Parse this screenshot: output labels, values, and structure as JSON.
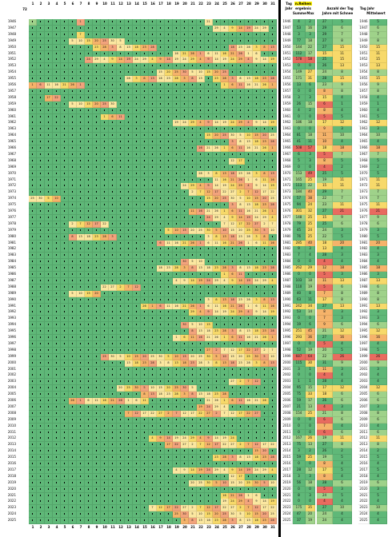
{
  "colors": {
    "green": "#5fb878",
    "light_green": "#9fd28a",
    "yellow": "#f7d96a",
    "light_yellow": "#fbe7a0",
    "orange": "#f5b36a",
    "salmon": "#f2a37c",
    "red": "#e86b5f",
    "header_bg": "#ffffff",
    "highlight": "#fff200"
  },
  "grid": {
    "corner_label": "72",
    "day_headers": [
      "1",
      "2",
      "3",
      "4",
      "5",
      "6",
      "7",
      "8",
      "9",
      "10",
      "11",
      "12",
      "13",
      "14",
      "15",
      "16",
      "17",
      "18",
      "19",
      "20",
      "21",
      "22",
      "23",
      "24",
      "25",
      "26",
      "27",
      "28",
      "29",
      "30",
      "31"
    ],
    "years": [
      "1946",
      "1947",
      "1948",
      "1949",
      "1950",
      "1951",
      "1952",
      "1953",
      "1954",
      "1955",
      "1956",
      "1957",
      "1958",
      "1959",
      "1960",
      "1961",
      "1962",
      "1963",
      "1964",
      "1965",
      "1966",
      "1967",
      "1968",
      "1969",
      "1970",
      "1971",
      "1972",
      "1973",
      "1974",
      "1975",
      "1976",
      "1977",
      "1978",
      "1979",
      "1980",
      "1981",
      "1982",
      "1983",
      "1984",
      "1985",
      "1986",
      "1987",
      "1988",
      "1989",
      "1990",
      "1991",
      "1992",
      "1993",
      "1994",
      "1995",
      "1996",
      "1997",
      "1998",
      "1999",
      "2000",
      "2001",
      "2002",
      "2003",
      "2004",
      "2005",
      "2006",
      "2007",
      "2008",
      "2009",
      "2010",
      "2011",
      "2012",
      "2013",
      "2014",
      "2015",
      "2016",
      "2017",
      "2018",
      "2019",
      "2020",
      "2021",
      "2022",
      "2023",
      "2024",
      "2025"
    ]
  },
  "right_panel": {
    "header_left_top": "Tag",
    "header_left_bottom": "Jahr",
    "header_highlight_top": "n.Reihen",
    "header_highlight_bottom": "ergebnis",
    "header_sum": "Summe",
    "header_max": "Max",
    "header_count_top": "Anzahl der Tag",
    "header_count_bottom": "Jahre mit Schnee",
    "header_tag_jahr": "Tag Jahr",
    "header_mittel": "Mittelwert",
    "rows": [
      {
        "year": "1946",
        "sum": "4",
        "max": "2",
        "cnt": "27",
        "day": "5",
        "yr2": "1946"
      },
      {
        "year": "1947",
        "sum": "53",
        "max": "16",
        "cnt": "29",
        "day": "6",
        "yr2": "1947"
      },
      {
        "year": "1948",
        "sum": "3",
        "max": "3",
        "cnt": "29",
        "day": "7",
        "yr2": "1948"
      },
      {
        "year": "1949",
        "sum": "77",
        "max": "18",
        "cnt": "27",
        "day": "8",
        "yr2": "1949"
      },
      {
        "year": "1950",
        "sum": "144",
        "max": "22",
        "cnt": "27",
        "day": "15",
        "yr2": "1950"
      },
      {
        "year": "1951",
        "sum": "112",
        "max": "17",
        "cnt": "15",
        "day": "11",
        "yr2": "1951"
      },
      {
        "year": "1952",
        "sum": "578",
        "max": "58",
        "cnt": "25",
        "day": "15",
        "yr2": "1952"
      },
      {
        "year": "1953",
        "sum": "0",
        "max": "0",
        "cnt": "26",
        "day": "13",
        "yr2": "1953"
      },
      {
        "year": "1954",
        "sum": "149",
        "max": "27",
        "cnt": "24",
        "day": "8",
        "yr2": "1954"
      },
      {
        "year": "1955",
        "sum": "171",
        "max": "31",
        "cnt": "28",
        "day": "15",
        "yr2": "1955"
      },
      {
        "year": "1956",
        "sum": "13",
        "max": "6",
        "cnt": "23",
        "day": "9",
        "yr2": "1956"
      },
      {
        "year": "1957",
        "sum": "0",
        "max": "0",
        "cnt": "8",
        "day": "8",
        "yr2": "1957"
      },
      {
        "year": "1958",
        "sum": "3",
        "max": "3",
        "cnt": "15",
        "day": "4",
        "yr2": "1958"
      },
      {
        "year": "1959",
        "sum": "26",
        "max": "15",
        "cnt": "6",
        "day": "1",
        "yr2": "1959"
      },
      {
        "year": "1960",
        "sum": "4",
        "max": "2",
        "cnt": "8",
        "day": "4",
        "yr2": "1960"
      },
      {
        "year": "1961",
        "sum": "0",
        "max": "0",
        "cnt": "5",
        "day": "5",
        "yr2": "1961"
      },
      {
        "year": "1962",
        "sum": "186",
        "max": "18",
        "cnt": "17",
        "day": "12",
        "yr2": "1962"
      },
      {
        "year": "1963",
        "sum": "0",
        "max": "0",
        "cnt": "9",
        "day": "3",
        "yr2": "1963"
      },
      {
        "year": "1964",
        "sum": "81",
        "max": "18",
        "cnt": "11",
        "day": "10",
        "yr2": "1964"
      },
      {
        "year": "1965",
        "sum": "41",
        "max": "11",
        "cnt": "10",
        "day": "4",
        "yr2": "1965"
      },
      {
        "year": "1966",
        "sum": "508",
        "max": "57",
        "cnt": "18",
        "day": "18",
        "yr2": "1966"
      },
      {
        "year": "1967",
        "sum": "6",
        "max": "3",
        "cnt": "5",
        "day": "7",
        "yr2": "1967"
      },
      {
        "year": "1968",
        "sum": "5",
        "max": "3",
        "cnt": "8",
        "day": "5",
        "yr2": "1968"
      },
      {
        "year": "1969",
        "sum": "0",
        "max": "0",
        "cnt": "4",
        "day": "2",
        "yr2": "1969"
      },
      {
        "year": "1970",
        "sum": "153",
        "max": "49",
        "cnt": "25",
        "day": "5",
        "yr2": "1970"
      },
      {
        "year": "1971",
        "sum": "165",
        "max": "25",
        "cnt": "19",
        "day": "11",
        "yr2": "1971"
      },
      {
        "year": "1972",
        "sum": "113",
        "max": "22",
        "cnt": "15",
        "day": "11",
        "yr2": "1972"
      },
      {
        "year": "1973",
        "sum": "184",
        "max": "40",
        "cnt": "29",
        "day": "7",
        "yr2": "1973"
      },
      {
        "year": "1974",
        "sum": "57",
        "max": "38",
        "cnt": "22",
        "day": "7",
        "yr2": "1974"
      },
      {
        "year": "1975",
        "sum": "94",
        "max": "24",
        "cnt": "23",
        "day": "11",
        "yr2": "1975"
      },
      {
        "year": "1976",
        "sum": "301",
        "max": "32",
        "cnt": "27",
        "day": "21",
        "yr2": "1976"
      },
      {
        "year": "1977",
        "sum": "148",
        "max": "25",
        "cnt": "15",
        "day": "9",
        "yr2": "1977"
      },
      {
        "year": "1978",
        "sum": "79",
        "max": "25",
        "cnt": "25",
        "day": "6",
        "yr2": "1978"
      },
      {
        "year": "1979",
        "sum": "45",
        "max": "24",
        "cnt": "24",
        "day": "3",
        "yr2": "1979"
      },
      {
        "year": "1980",
        "sum": "76",
        "max": "25",
        "cnt": "22",
        "day": "5",
        "yr2": "1980"
      },
      {
        "year": "1981",
        "sum": "285",
        "max": "40",
        "cnt": "18",
        "day": "20",
        "yr2": "1981"
      },
      {
        "year": "1982",
        "sum": "9",
        "max": "3",
        "cnt": "13",
        "day": "4",
        "yr2": "1982"
      },
      {
        "year": "1983",
        "sum": "7",
        "max": "4",
        "cnt": "28",
        "day": "3",
        "yr2": "1983"
      },
      {
        "year": "1984",
        "sum": "0",
        "max": "0",
        "cnt": "4",
        "day": "4",
        "yr2": "1984"
      },
      {
        "year": "1985",
        "sum": "262",
        "max": "29",
        "cnt": "12",
        "day": "18",
        "yr2": "1985"
      },
      {
        "year": "1986",
        "sum": "0",
        "max": "0",
        "cnt": "5",
        "day": "3",
        "yr2": "1986"
      },
      {
        "year": "1987",
        "sum": "103",
        "max": "18",
        "cnt": "11",
        "day": "13",
        "yr2": "1987"
      },
      {
        "year": "1988",
        "sum": "110",
        "max": "19",
        "cnt": "5",
        "day": "6",
        "yr2": "1988"
      },
      {
        "year": "1989",
        "sum": "40",
        "max": "8",
        "cnt": "7",
        "day": "8",
        "yr2": "1989"
      },
      {
        "year": "1990",
        "sum": "63",
        "max": "11",
        "cnt": "17",
        "day": "8",
        "yr2": "1990"
      },
      {
        "year": "1991",
        "sum": "242",
        "max": "34",
        "cnt": "27",
        "day": "13",
        "yr2": "1991"
      },
      {
        "year": "1992",
        "sum": "53",
        "max": "14",
        "cnt": "8",
        "day": "3",
        "yr2": "1992"
      },
      {
        "year": "1993",
        "sum": "0",
        "max": "0",
        "cnt": "7",
        "day": "3",
        "yr2": "1993"
      },
      {
        "year": "1994",
        "sum": "19",
        "max": "6",
        "cnt": "9",
        "day": "6",
        "yr2": "1994"
      },
      {
        "year": "1995",
        "sum": "251",
        "max": "45",
        "cnt": "21",
        "day": "12",
        "yr2": "1995"
      },
      {
        "year": "1996",
        "sum": "293",
        "max": "36",
        "cnt": "27",
        "day": "16",
        "yr2": "1996"
      },
      {
        "year": "1997",
        "sum": "0",
        "max": "0",
        "cnt": "5",
        "day": "4",
        "yr2": "1997"
      },
      {
        "year": "1998",
        "sum": "52",
        "max": "19",
        "cnt": "20",
        "day": "5",
        "yr2": "1998"
      },
      {
        "year": "1999",
        "sum": "687",
        "max": "64",
        "cnt": "22",
        "day": "26",
        "yr2": "1999"
      },
      {
        "year": "2000",
        "sum": "115",
        "max": "30",
        "cnt": "31",
        "day": "9",
        "yr2": "2000"
      },
      {
        "year": "2001",
        "sum": "3",
        "max": "1",
        "cnt": "11",
        "day": "3",
        "yr2": "2001"
      },
      {
        "year": "2002",
        "sum": "0",
        "max": "0",
        "cnt": "4",
        "day": "4",
        "yr2": "2002"
      },
      {
        "year": "2003",
        "sum": "1",
        "max": "1",
        "cnt": "28",
        "day": "4",
        "yr2": "2003"
      },
      {
        "year": "2004",
        "sum": "95",
        "max": "15",
        "cnt": "17",
        "day": "12",
        "yr2": "2004"
      },
      {
        "year": "2005",
        "sum": "75",
        "max": "33",
        "cnt": "18",
        "day": "6",
        "yr2": "2005"
      },
      {
        "year": "2006",
        "sum": "59",
        "max": "17",
        "cnt": "26",
        "day": "6",
        "yr2": "2006"
      },
      {
        "year": "2007",
        "sum": "21",
        "max": "13",
        "cnt": "4",
        "day": "3",
        "yr2": "2007"
      },
      {
        "year": "2008",
        "sum": "154",
        "max": "25",
        "cnt": "21",
        "day": "8",
        "yr2": "2008"
      },
      {
        "year": "2009",
        "sum": "0",
        "max": "0",
        "cnt": "6",
        "day": "6",
        "yr2": "2009"
      },
      {
        "year": "2010",
        "sum": "0",
        "max": "0",
        "cnt": "7",
        "day": "4",
        "yr2": "2010"
      },
      {
        "year": "2011",
        "sum": "0",
        "max": "0",
        "cnt": "6",
        "day": "6",
        "yr2": "2011"
      },
      {
        "year": "2012",
        "sum": "167",
        "max": "26",
        "cnt": "19",
        "day": "11",
        "yr2": "2012"
      },
      {
        "year": "2013",
        "sum": "75",
        "max": "13",
        "cnt": "27",
        "day": "8",
        "yr2": "2013"
      },
      {
        "year": "2014",
        "sum": "3",
        "max": "2",
        "cnt": "26",
        "day": "2",
        "yr2": "2014"
      },
      {
        "year": "2015",
        "sum": "59",
        "max": "25",
        "cnt": "19",
        "day": "5",
        "yr2": "2015"
      },
      {
        "year": "2016",
        "sum": "0",
        "max": "0",
        "cnt": "8",
        "day": "4",
        "yr2": "2016"
      },
      {
        "year": "2017",
        "sum": "28",
        "max": "12",
        "cnt": "17",
        "day": "5",
        "yr2": "2017"
      },
      {
        "year": "2018",
        "sum": "3",
        "max": "3",
        "cnt": "8",
        "day": "4",
        "yr2": "2018"
      },
      {
        "year": "2019",
        "sum": "56",
        "max": "18",
        "cnt": "28",
        "day": "6",
        "yr2": "2019"
      },
      {
        "year": "2020",
        "sum": "0",
        "max": "0",
        "cnt": "5",
        "day": "3",
        "yr2": "2020"
      },
      {
        "year": "2021",
        "sum": "8",
        "max": "3",
        "cnt": "24",
        "day": "5",
        "yr2": "2021"
      },
      {
        "year": "2022",
        "sum": "0",
        "max": "0",
        "cnt": "4",
        "day": "4",
        "yr2": "2022"
      },
      {
        "year": "2023",
        "sum": "175",
        "max": "35",
        "cnt": "27",
        "day": "10",
        "yr2": "2023"
      },
      {
        "year": "2024",
        "sum": "47",
        "max": "20",
        "cnt": "24",
        "day": "4",
        "yr2": "2024"
      },
      {
        "year": "2025",
        "sum": "37",
        "max": "19",
        "cnt": "24",
        "day": "4",
        "yr2": "2025"
      }
    ]
  },
  "footer_day_headers": [
    "1",
    "2",
    "3",
    "4",
    "5",
    "6",
    "7",
    "8",
    "9",
    "10",
    "11",
    "12",
    "13",
    "14",
    "15",
    "16",
    "17",
    "18",
    "19",
    "20",
    "21",
    "22",
    "23",
    "24",
    "25",
    "26",
    "27",
    "28",
    "29",
    "30",
    "31"
  ],
  "snow_spans": [
    [
      0,
      [
        [
          6,
          6
        ],
        [
          22,
          22
        ]
      ]
    ],
    [
      1,
      [
        [
          23,
          29
        ]
      ]
    ],
    [
      2,
      [
        [
          6,
          6
        ]
      ]
    ],
    [
      3,
      [
        [
          5,
          11
        ]
      ]
    ],
    [
      4,
      [
        [
          8,
          15
        ],
        [
          25,
          30
        ]
      ]
    ],
    [
      5,
      [
        [
          18,
          28
        ]
      ]
    ],
    [
      6,
      [
        [
          7,
          30
        ]
      ]
    ],
    [
      8,
      [
        [
          16,
          24
        ]
      ]
    ],
    [
      9,
      [
        [
          12,
          21
        ],
        [
          23,
          30
        ]
      ]
    ],
    [
      10,
      [
        [
          0,
          6
        ],
        [
          24,
          30
        ]
      ]
    ],
    [
      12,
      [
        [
          2,
          3
        ]
      ]
    ],
    [
      13,
      [
        [
          5,
          10
        ]
      ]
    ],
    [
      15,
      [
        [
          9,
          11
        ]
      ]
    ],
    [
      16,
      [
        [
          18,
          30
        ]
      ]
    ],
    [
      18,
      [
        [
          22,
          30
        ]
      ]
    ],
    [
      19,
      [
        [
          25,
          30
        ]
      ]
    ],
    [
      20,
      [
        [
          21,
          30
        ]
      ]
    ],
    [
      22,
      [
        [
          25,
          26
        ]
      ]
    ],
    [
      24,
      [
        [
          21,
          30
        ]
      ]
    ],
    [
      25,
      [
        [
          23,
          30
        ]
      ]
    ],
    [
      26,
      [
        [
          19,
          30
        ]
      ]
    ],
    [
      27,
      [
        [
          20,
          30
        ]
      ]
    ],
    [
      28,
      [
        [
          0,
          3
        ],
        [
          22,
          30
        ]
      ]
    ],
    [
      29,
      [
        [
          25,
          30
        ]
      ]
    ],
    [
      30,
      [
        [
          20,
          30
        ]
      ]
    ],
    [
      31,
      [
        [
          22,
          30
        ]
      ]
    ],
    [
      32,
      [
        [
          5,
          9
        ],
        [
          24,
          30
        ]
      ]
    ],
    [
      33,
      [
        [
          17,
          30
        ]
      ]
    ],
    [
      34,
      [
        [
          5,
          10
        ],
        [
          22,
          29
        ]
      ]
    ],
    [
      35,
      [
        [
          16,
          30
        ]
      ]
    ],
    [
      38,
      [
        [
          19,
          21
        ]
      ]
    ],
    [
      39,
      [
        [
          16,
          30
        ]
      ]
    ],
    [
      40,
      [
        [
          24,
          26
        ]
      ]
    ],
    [
      41,
      [
        [
          18,
          30
        ]
      ]
    ],
    [
      42,
      [
        [
          9,
          13
        ]
      ]
    ],
    [
      43,
      [
        [
          5,
          8
        ]
      ]
    ],
    [
      44,
      [
        [
          22,
          30
        ]
      ]
    ],
    [
      45,
      [
        [
          14,
          30
        ]
      ]
    ],
    [
      46,
      [
        [
          20,
          30
        ]
      ]
    ],
    [
      48,
      [
        [
          19,
          22
        ]
      ]
    ],
    [
      49,
      [
        [
          20,
          30
        ]
      ]
    ],
    [
      50,
      [
        [
          18,
          30
        ]
      ]
    ],
    [
      52,
      [
        [
          22,
          30
        ]
      ]
    ],
    [
      53,
      [
        [
          9,
          30
        ]
      ]
    ],
    [
      54,
      [
        [
          12,
          30
        ]
      ]
    ],
    [
      57,
      [
        [
          25,
          28
        ]
      ]
    ],
    [
      58,
      [
        [
          11,
          20
        ]
      ]
    ],
    [
      59,
      [
        [
          14,
          24
        ]
      ]
    ],
    [
      60,
      [
        [
          5,
          14
        ],
        [
          22,
          29
        ]
      ]
    ],
    [
      61,
      [
        [
          21,
          24
        ]
      ]
    ],
    [
      62,
      [
        [
          12,
          28
        ]
      ]
    ],
    [
      66,
      [
        [
          15,
          25
        ]
      ]
    ],
    [
      67,
      [
        [
          17,
          30
        ]
      ]
    ],
    [
      68,
      [
        [
          28,
          29
        ]
      ]
    ],
    [
      69,
      [
        [
          23,
          30
        ]
      ]
    ],
    [
      71,
      [
        [
          18,
          30
        ]
      ]
    ],
    [
      72,
      [
        [
          25,
          26
        ]
      ]
    ],
    [
      73,
      [
        [
          20,
          30
        ]
      ]
    ],
    [
      75,
      [
        [
          24,
          28
        ]
      ]
    ],
    [
      76,
      [
        [
          24,
          30
        ]
      ]
    ],
    [
      77,
      [
        [
          15,
          30
        ]
      ]
    ],
    [
      78,
      [
        [
          18,
          30
        ]
      ]
    ],
    [
      79,
      [
        [
          19,
          30
        ]
      ]
    ]
  ]
}
